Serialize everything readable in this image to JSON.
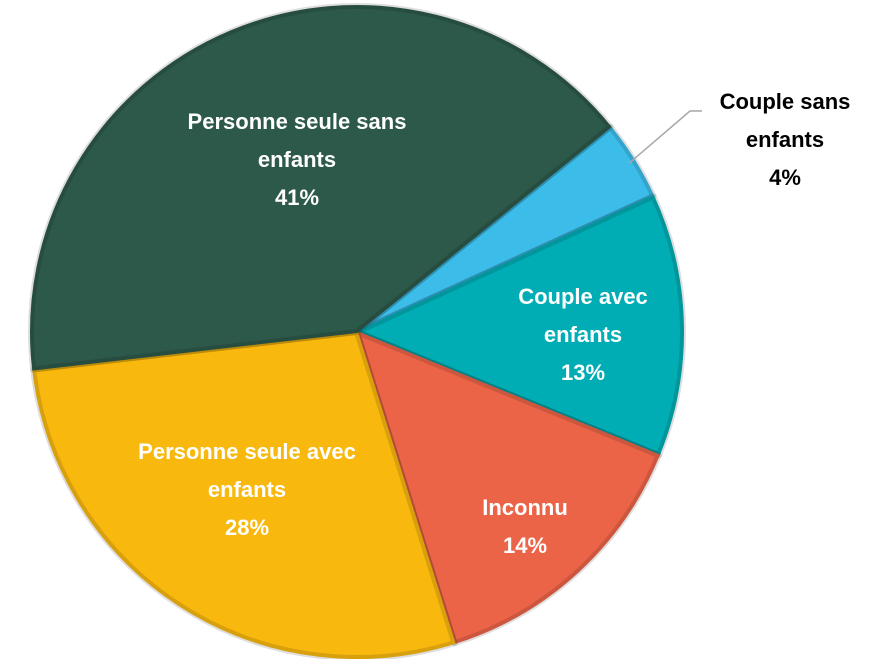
{
  "chart_data": {
    "type": "pie",
    "categories": [
      "Couple sans enfants",
      "Couple avec enfants",
      "Inconnu",
      "Personne seule avec enfants",
      "Personne seule sans enfants"
    ],
    "values": [
      4,
      13,
      14,
      28,
      41
    ],
    "value_labels": [
      "4%",
      "13%",
      "14%",
      "28%",
      "41%"
    ],
    "colors": [
      "#3cbde9",
      "#00adb4",
      "#ec6448",
      "#f8b80e",
      "#2d594a"
    ]
  }
}
